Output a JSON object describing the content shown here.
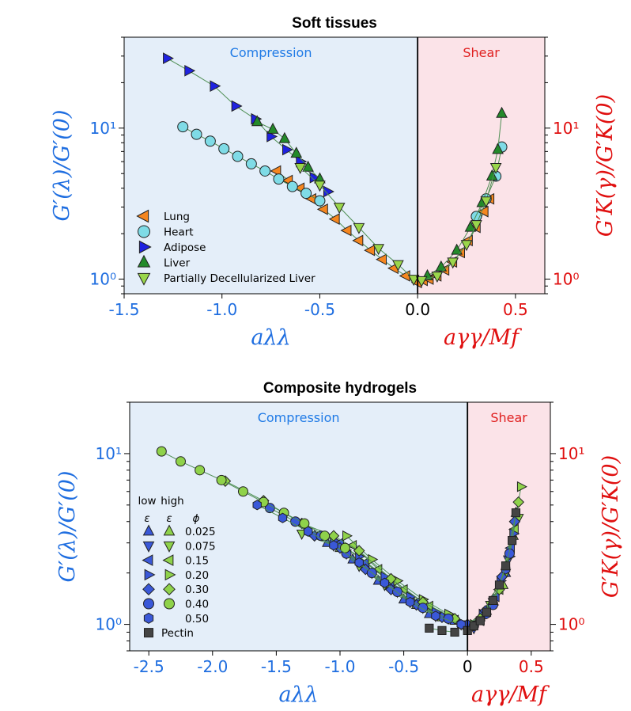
{
  "colors": {
    "compression_text": "#1f7ae6",
    "shear_text": "#e02020",
    "compression_bg": "#e4eef9",
    "shear_bg": "#fbe3e8",
    "left_axis": "#1f6ee0",
    "right_axis": "#e01010"
  },
  "chart_data": [
    {
      "type": "scatter",
      "title": "Soft tissues",
      "yscale": "log",
      "xlim": [
        -1.5,
        0.65
      ],
      "ylim": [
        0.8,
        40
      ],
      "compression_label": "Compression",
      "shear_label": "Shear",
      "xlabel_left": "aλλ",
      "xlabel_right": "aγγ/Mf",
      "ylabel_left": "G′(λ)/G′(0)",
      "ylabel_right": "G′K(γ)/G′K(0)",
      "x_ticks": [
        {
          "value": -1.5,
          "label": "-1.5"
        },
        {
          "value": -1.0,
          "label": "-1.0"
        },
        {
          "value": -0.5,
          "label": "-0.5"
        },
        {
          "value": 0.0,
          "label": "0.0"
        },
        {
          "value": 0.5,
          "label": "0.5"
        }
      ],
      "y_ticks_left": [
        {
          "value": 1,
          "label": "10⁰"
        },
        {
          "value": 10,
          "label": "10¹"
        }
      ],
      "y_ticks_right": [
        {
          "value": 1,
          "label": "10⁰"
        },
        {
          "value": 10,
          "label": "10¹"
        }
      ],
      "legend_position": "bottom-left",
      "series": [
        {
          "name": "Lung",
          "marker": "triangle-left",
          "color": "#f5861f",
          "x": [
            -0.72,
            -0.66,
            -0.6,
            -0.54,
            -0.48,
            -0.42,
            -0.36,
            -0.3,
            -0.24,
            -0.18,
            -0.12,
            -0.06,
            0.0,
            0.03,
            0.06,
            0.1,
            0.14,
            0.18,
            0.22,
            0.26,
            0.3,
            0.34,
            0.37
          ],
          "y": [
            5.2,
            4.5,
            4.0,
            3.4,
            2.9,
            2.5,
            2.1,
            1.8,
            1.55,
            1.35,
            1.18,
            1.05,
            0.95,
            0.98,
            1.0,
            1.05,
            1.15,
            1.3,
            1.5,
            1.8,
            2.2,
            2.8,
            3.4
          ]
        },
        {
          "name": "Heart",
          "marker": "circle",
          "color": "#7fdbe6",
          "x": [
            -1.2,
            -1.13,
            -1.06,
            -0.99,
            -0.92,
            -0.85,
            -0.78,
            -0.71,
            -0.64,
            -0.57,
            -0.5,
            0.3,
            0.35,
            0.4,
            0.43
          ],
          "y": [
            10.2,
            9.1,
            8.2,
            7.3,
            6.5,
            5.8,
            5.2,
            4.6,
            4.1,
            3.7,
            3.3,
            2.6,
            3.4,
            4.8,
            7.5
          ]
        },
        {
          "name": "Adipose",
          "marker": "triangle-right",
          "color": "#1f22e0",
          "x": [
            -1.28,
            -1.17,
            -1.04,
            -0.93,
            -0.83,
            -0.75,
            -0.67,
            -0.6,
            -0.53,
            -0.46
          ],
          "y": [
            29,
            24,
            19,
            14,
            11.5,
            8.8,
            7.2,
            6.0,
            4.7,
            3.8
          ]
        },
        {
          "name": "Liver",
          "marker": "triangle-up",
          "color": "#238a2a",
          "x": [
            -0.82,
            -0.74,
            -0.68,
            -0.62,
            -0.56,
            -0.5,
            0.05,
            0.12,
            0.2,
            0.27,
            0.33,
            0.38,
            0.41,
            0.43
          ],
          "y": [
            11,
            9.8,
            8.5,
            6.8,
            5.5,
            4.6,
            1.05,
            1.2,
            1.55,
            2.2,
            3.2,
            4.8,
            7.2,
            12.5
          ]
        },
        {
          "name": "Partially Decellularized Liver",
          "marker": "triangle-down",
          "color": "#9ad64b",
          "x": [
            -0.6,
            -0.5,
            -0.4,
            -0.3,
            -0.2,
            -0.1,
            -0.02,
            0.02,
            0.1,
            0.18,
            0.25,
            0.3,
            0.35,
            0.4
          ],
          "y": [
            5.5,
            4.2,
            3.0,
            2.2,
            1.6,
            1.25,
            1.0,
            0.98,
            1.05,
            1.3,
            1.7,
            2.3,
            3.3,
            5.5
          ]
        }
      ]
    },
    {
      "type": "scatter",
      "title": "Composite hydrogels",
      "yscale": "log",
      "xlim": [
        -2.65,
        0.65
      ],
      "ylim": [
        0.7,
        20
      ],
      "compression_label": "Compression",
      "shear_label": "Shear",
      "xlabel_left": "aλλ",
      "xlabel_right": "aγγ/Mf",
      "ylabel_left": "G′(λ)/G′(0)",
      "ylabel_right": "G′K(γ)/G′K(0)",
      "x_ticks": [
        {
          "value": -2.5,
          "label": "-2.5"
        },
        {
          "value": -2.0,
          "label": "-2.0"
        },
        {
          "value": -1.5,
          "label": "-1.5"
        },
        {
          "value": -1.0,
          "label": "-1.0"
        },
        {
          "value": -0.5,
          "label": "-0.5"
        },
        {
          "value": 0.0,
          "label": "0"
        },
        {
          "value": 0.5,
          "label": "0.5"
        }
      ],
      "y_ticks_left": [
        {
          "value": 1,
          "label": "10⁰"
        },
        {
          "value": 10,
          "label": "10¹"
        }
      ],
      "y_ticks_right": [
        {
          "value": 1,
          "label": "10⁰"
        },
        {
          "value": 10,
          "label": "10¹"
        }
      ],
      "legend_position": "bottom-left",
      "legend": {
        "col_low": "low",
        "col_high": "high",
        "epsilon": "ε",
        "phi": "ϕ",
        "phi_values": [
          "0.025",
          "0.075",
          "0.15",
          "0.20",
          "0.30",
          "0.40",
          "0.50"
        ],
        "pectin": "Pectin"
      },
      "series": [
        {
          "name": "0.025",
          "marker": "triangle-up",
          "color": "#3a58d8",
          "x": [
            -1.1,
            -0.9,
            -0.7,
            -0.5,
            -0.3,
            -0.1,
            0.0,
            0.1,
            0.2,
            0.3,
            0.38
          ],
          "y": [
            3.0,
            2.4,
            1.8,
            1.4,
            1.15,
            1.05,
            0.98,
            1.1,
            1.4,
            2.0,
            4.5
          ]
        },
        {
          "name": "0.025",
          "marker": "triangle-up",
          "color": "#8fd24a",
          "x": [
            -1.0,
            -0.8,
            -0.6,
            -0.4,
            -0.2,
            0.0,
            0.15,
            0.28,
            0.36
          ],
          "y": [
            2.8,
            2.2,
            1.7,
            1.3,
            1.1,
            1.0,
            1.2,
            1.7,
            3.3
          ]
        },
        {
          "name": "0.075",
          "marker": "triangle-down",
          "color": "#3a58d8",
          "x": [
            -0.95,
            -0.75,
            -0.55,
            -0.35,
            -0.15,
            0.05,
            0.2,
            0.32
          ],
          "y": [
            2.6,
            2.0,
            1.55,
            1.25,
            1.08,
            0.95,
            1.35,
            2.4
          ]
        },
        {
          "name": "0.075",
          "marker": "triangle-down",
          "color": "#8fd24a",
          "x": [
            -1.3,
            -1.05,
            -0.85,
            -0.65,
            -0.45,
            -0.25,
            -0.05,
            0.18,
            0.3,
            0.4
          ],
          "y": [
            3.4,
            2.9,
            2.2,
            1.7,
            1.35,
            1.12,
            1.0,
            1.3,
            2.0,
            4.2
          ]
        },
        {
          "name": "0.15",
          "marker": "triangle-left",
          "color": "#3a58d8",
          "x": [
            -1.0,
            -0.8,
            -0.6,
            -0.4,
            -0.2,
            0.02,
            0.22,
            0.34
          ],
          "y": [
            3.0,
            2.3,
            1.75,
            1.35,
            1.1,
            0.98,
            1.45,
            2.8
          ]
        },
        {
          "name": "0.15",
          "marker": "triangle-left",
          "color": "#8fd24a",
          "x": [
            -0.9,
            -0.7,
            -0.5,
            -0.3,
            -0.1,
            0.1,
            0.25,
            0.37
          ],
          "y": [
            2.9,
            2.1,
            1.6,
            1.28,
            1.06,
            1.05,
            1.6,
            3.6
          ]
        },
        {
          "name": "0.20",
          "marker": "triangle-right",
          "color": "#3a58d8",
          "x": [
            -1.05,
            -0.85,
            -0.65,
            -0.45,
            -0.25,
            -0.05,
            0.12,
            0.26,
            0.36
          ],
          "y": [
            3.1,
            2.5,
            1.9,
            1.45,
            1.18,
            1.02,
            1.15,
            1.8,
            3.4
          ]
        },
        {
          "name": "0.20",
          "marker": "triangle-right",
          "color": "#8fd24a",
          "x": [
            -0.95,
            -0.75,
            -0.55,
            -0.35,
            -0.15,
            0.05,
            0.2,
            0.33,
            0.42
          ],
          "y": [
            3.3,
            2.4,
            1.8,
            1.4,
            1.15,
            1.0,
            1.3,
            2.5,
            6.4
          ]
        },
        {
          "name": "0.30",
          "marker": "diamond",
          "color": "#3a58d8",
          "x": [
            -1.2,
            -1.0,
            -0.8,
            -0.6,
            -0.4,
            -0.2,
            0.0,
            0.14,
            0.27,
            0.37
          ],
          "y": [
            3.3,
            2.8,
            2.1,
            1.6,
            1.3,
            1.1,
            1.0,
            1.2,
            1.9,
            4.0
          ]
        },
        {
          "name": "0.30",
          "marker": "diamond",
          "color": "#8fd24a",
          "x": [
            -1.9,
            -1.6,
            -1.3,
            -1.05,
            -0.85,
            -0.6,
            -0.35,
            -0.1,
            0.1,
            0.25,
            0.4
          ],
          "y": [
            6.9,
            5.3,
            3.9,
            3.3,
            2.7,
            1.85,
            1.35,
            1.08,
            1.08,
            1.6,
            5.2
          ]
        },
        {
          "name": "0.40",
          "marker": "circle",
          "color": "#3a58d8",
          "x": [
            -1.55,
            -1.35,
            -1.15,
            -0.95,
            -0.75,
            -0.55,
            -0.35,
            -0.15,
            0.05,
            0.2,
            0.33
          ],
          "y": [
            4.8,
            4.0,
            3.3,
            2.6,
            2.0,
            1.55,
            1.25,
            1.08,
            0.98,
            1.3,
            2.6
          ]
        },
        {
          "name": "0.40",
          "marker": "circle",
          "color": "#8fd24a",
          "x": [
            -2.4,
            -2.25,
            -2.1,
            -1.93,
            -1.76,
            -1.6,
            -1.44,
            -1.28,
            -1.12,
            -0.96
          ],
          "y": [
            10.3,
            9.0,
            8.0,
            7.0,
            6.0,
            5.2,
            4.5,
            3.9,
            3.3,
            2.8
          ]
        },
        {
          "name": "0.50",
          "marker": "hexagon",
          "color": "#3a58d8",
          "x": [
            -1.65,
            -1.45,
            -1.25,
            -1.05,
            -0.85,
            -0.65,
            -0.45,
            -0.25,
            -0.05,
            0.15,
            0.3
          ],
          "y": [
            5.0,
            4.2,
            3.5,
            2.9,
            2.3,
            1.75,
            1.35,
            1.12,
            1.0,
            1.15,
            2.1
          ]
        },
        {
          "name": "Pectin",
          "marker": "square",
          "color": "#444444",
          "x": [
            -0.3,
            -0.2,
            -0.1,
            0.0,
            0.05,
            0.1,
            0.15,
            0.2,
            0.25,
            0.3,
            0.35,
            0.38
          ],
          "y": [
            0.95,
            0.92,
            0.9,
            0.92,
            0.98,
            1.05,
            1.18,
            1.38,
            1.7,
            2.2,
            3.1,
            4.5
          ]
        }
      ]
    }
  ]
}
